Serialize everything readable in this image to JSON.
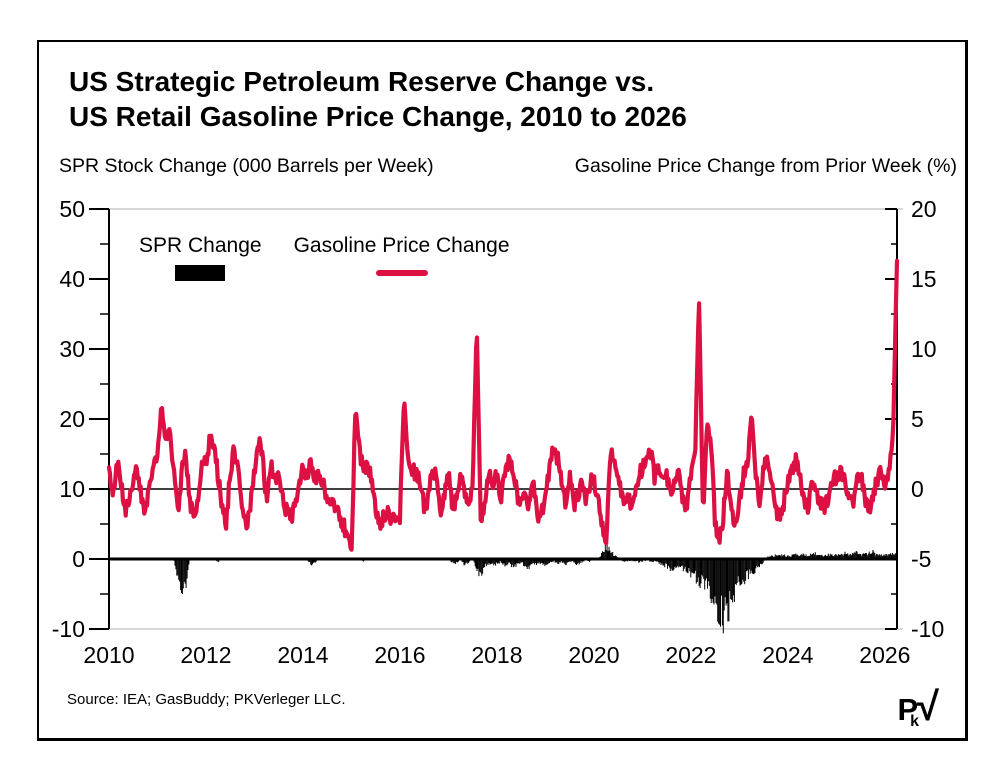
{
  "figure": {
    "title_line1": "US Strategic Petroleum Reserve Change vs.",
    "title_line2": "US Retail Gasoline Price Change, 2010 to 2026",
    "left_axis_title": "SPR Stock Change (000 Barrels per Week)",
    "right_axis_title": "Gasoline Price Change from Prior Week (%)",
    "source": "Source: IEA; GasBuddy; PKVerleger LLC.",
    "logo_p": "P",
    "logo_k": "k",
    "logo_root": "√"
  },
  "legend": {
    "spr_label": "SPR Change",
    "gas_label": "Gasoline Price Change"
  },
  "colors": {
    "gasoline": "#dc1043",
    "spr": "#000000",
    "frame_gray": "#bfbfbf"
  },
  "chart_data": {
    "type": "combo",
    "title": "US Strategic Petroleum Reserve Change vs. US Retail Gasoline Price Change, 2010 to 2026",
    "x_axis": {
      "range": [
        2010,
        2026.25
      ],
      "ticks": [
        2010,
        2012,
        2014,
        2016,
        2018,
        2020,
        2022,
        2024,
        2026
      ],
      "grid": false
    },
    "left_axis": {
      "label": "SPR Stock Change (000 Barrels per Week)",
      "range": [
        -10,
        50
      ],
      "major_ticks": [
        50,
        40,
        30,
        20,
        10,
        0,
        -10
      ],
      "minor_ticks": [
        45,
        35,
        25,
        15,
        5,
        -5
      ],
      "zero_line": 0
    },
    "right_axis": {
      "label": "Gasoline Price Change from Prior Week (%)",
      "range": [
        -10,
        20
      ],
      "major_ticks": [
        20,
        15,
        10,
        5,
        0,
        -5,
        -10
      ],
      "minor_ticks": [
        17.5,
        12.5,
        7.5,
        2.5,
        -2.5,
        -7.5
      ],
      "zero_line": 0
    },
    "legend_position": "top-left-inside",
    "series": [
      {
        "name": "SPR Change",
        "type": "bar",
        "axis": "left",
        "color": "#000000",
        "start_year": 2010,
        "interval_months": 1,
        "values": [
          0,
          0,
          0,
          0,
          0,
          0,
          0,
          0,
          0,
          0,
          0,
          0,
          0,
          0,
          0,
          0,
          0,
          -2.5,
          -5.6,
          -3.5,
          0,
          0,
          0,
          0,
          0,
          0,
          0,
          -0.4,
          0,
          0,
          0,
          0,
          0,
          0,
          0,
          0,
          0,
          0,
          0,
          0,
          0,
          0,
          0,
          0,
          0,
          0,
          0,
          0,
          0,
          0,
          -0.9,
          -0.4,
          0,
          0,
          0,
          0,
          0,
          0,
          0,
          0,
          0,
          0,
          0,
          -0.3,
          0,
          0,
          0,
          0,
          0,
          0,
          0,
          0,
          0,
          0,
          0,
          0,
          0,
          0,
          0,
          0,
          0,
          0,
          0,
          0,
          0,
          -0.5,
          -0.6,
          0,
          -0.8,
          -0.5,
          0,
          -1.8,
          -2.3,
          -1.0,
          -0.6,
          -0.8,
          -0.7,
          -0.4,
          -0.9,
          -0.5,
          -1.2,
          -0.8,
          -0.4,
          -1.0,
          -1.4,
          -0.6,
          -0.9,
          -0.5,
          -0.8,
          -0.5,
          -0.3,
          -0.6,
          -0.4,
          -0.7,
          -0.3,
          -0.5,
          -0.9,
          -0.4,
          -0.2,
          -0.3,
          0,
          0,
          0.8,
          1.9,
          1.4,
          0.5,
          0.2,
          -0.3,
          -0.4,
          -0.2,
          -0.3,
          -0.4,
          -0.3,
          -0.2,
          -0.4,
          -0.3,
          -0.5,
          -0.8,
          -1.0,
          -1.4,
          -1.2,
          -0.9,
          -1.3,
          -1.6,
          -2.0,
          -2.4,
          -3.0,
          -3.6,
          -4.2,
          -5.0,
          -6.2,
          -7.4,
          -8.0,
          -7.2,
          -6.0,
          -4.6,
          -3.4,
          -2.8,
          -2.4,
          -2.0,
          -1.6,
          -1.0,
          -0.4,
          0.3,
          0.4,
          0.5,
          0.6,
          0.5,
          0.4,
          0.5,
          0.6,
          0.5,
          0.7,
          0.5,
          0.6,
          0.8,
          0.6,
          0.5,
          0.7,
          0.6,
          0.5,
          0.6,
          0.8,
          0.7,
          0.6,
          0.9,
          0.7,
          0.6,
          0.8,
          1.0,
          0.7,
          0.6,
          0.6,
          0.7,
          0.8,
          0.7
        ]
      },
      {
        "name": "Gasoline Price Change",
        "type": "line",
        "axis": "right",
        "color": "#dc1043",
        "start_year": 2010,
        "interval_months": 1,
        "values": [
          1.2,
          -0.8,
          1.8,
          0.6,
          -1.5,
          -0.9,
          0.8,
          1.5,
          -0.6,
          -1.8,
          0.9,
          1.4,
          2.2,
          6.1,
          3.2,
          4.3,
          1.5,
          -1.8,
          1.2,
          2.5,
          -0.8,
          -2.2,
          -1.0,
          1.5,
          2.0,
          3.6,
          2.8,
          1.0,
          -1.5,
          -2.4,
          1.2,
          2.8,
          1.5,
          -1.2,
          -2.6,
          -1.0,
          1.2,
          3.5,
          2.2,
          -1.0,
          1.8,
          0.6,
          1.5,
          -0.9,
          -1.5,
          -2.3,
          -1.2,
          0.5,
          1.5,
          1.0,
          1.8,
          0.8,
          1.2,
          0.5,
          -0.6,
          -1.0,
          -1.5,
          -2.0,
          -2.6,
          -3.2,
          -4.4,
          6.0,
          2.5,
          1.8,
          1.5,
          0.8,
          -1.2,
          -2.5,
          -2.0,
          -1.5,
          -2.2,
          -1.8,
          -2.0,
          6.5,
          2.0,
          1.5,
          1.0,
          0.6,
          -1.2,
          -0.8,
          1.5,
          0.8,
          -1.5,
          -0.5,
          1.0,
          -1.2,
          -0.8,
          1.2,
          -0.5,
          -1.5,
          0.8,
          11.8,
          -2.5,
          -1.0,
          1.5,
          0.5,
          1.2,
          -0.6,
          1.0,
          2.0,
          1.5,
          -0.5,
          -1.0,
          -0.4,
          -1.2,
          1.0,
          -2.2,
          -1.8,
          -0.5,
          1.5,
          3.0,
          2.2,
          0.8,
          -1.5,
          1.0,
          -1.2,
          -0.5,
          0.8,
          -1.0,
          0.5,
          0.6,
          -0.8,
          -2.5,
          -4.0,
          2.5,
          2.0,
          0.8,
          -0.5,
          -0.6,
          -1.0,
          -0.8,
          1.0,
          1.5,
          2.0,
          2.8,
          0.8,
          1.5,
          0.8,
          1.0,
          -0.6,
          0.8,
          1.5,
          -0.8,
          -1.2,
          1.0,
          2.0,
          13.8,
          -2.0,
          5.0,
          3.0,
          -2.5,
          -3.5,
          -2.0,
          1.5,
          -1.5,
          -2.8,
          -0.8,
          1.0,
          2.0,
          5.5,
          1.2,
          -0.8,
          1.5,
          2.2,
          0.8,
          -1.5,
          -2.0,
          -1.0,
          0.8,
          1.5,
          2.0,
          1.0,
          -0.8,
          -1.2,
          0.6,
          -0.5,
          -1.0,
          -1.5,
          -0.6,
          0.5,
          0.9,
          1.4,
          0.6,
          -0.8,
          -1.2,
          0.5,
          1.0,
          -0.6,
          -1.4,
          -0.8,
          0.6,
          1.2,
          0.5,
          1.0,
          3.5,
          16.3
        ]
      }
    ],
    "notable_points": [
      {
        "series": "Gasoline Price Change",
        "year": 2011.1,
        "value": 6.1
      },
      {
        "series": "Gasoline Price Change",
        "year": 2015.0,
        "value": -4.4
      },
      {
        "series": "Gasoline Price Change",
        "year": 2016.1,
        "value": 6.5
      },
      {
        "series": "Gasoline Price Change",
        "year": 2017.6,
        "value": 11.8
      },
      {
        "series": "Gasoline Price Change",
        "year": 2020.3,
        "value": -4.0
      },
      {
        "series": "Gasoline Price Change",
        "year": 2022.2,
        "value": 13.8
      },
      {
        "series": "Gasoline Price Change",
        "year": 2026.25,
        "value": 16.3
      },
      {
        "series": "SPR Change",
        "year": 2011.55,
        "value": -5.6
      },
      {
        "series": "SPR Change",
        "year": 2022.7,
        "value": -8.0
      }
    ],
    "render": {
      "weeks_per_year": 52.18,
      "weekly_noise_gas": 0.55,
      "weekly_noise_spr": 0.35,
      "line_width": 4.2,
      "bar_width": 1
    }
  }
}
